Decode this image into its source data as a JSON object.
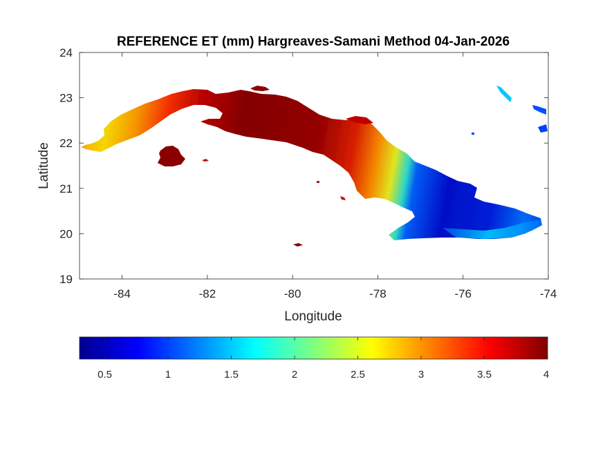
{
  "figure": {
    "title": "REFERENCE ET (mm) Hargreaves-Samani Method  04-Jan-2026",
    "xlabel": "Longitude",
    "ylabel": "Latitude"
  },
  "map": {
    "xlim": [
      -85,
      -74
    ],
    "ylim": [
      19,
      24
    ],
    "x_ticks": [
      -84,
      -82,
      -80,
      -78,
      -76,
      -74
    ],
    "y_ticks": [
      19,
      20,
      21,
      22,
      23,
      24
    ],
    "x_tick_labels": [
      "-84",
      "-82",
      "-80",
      "-78",
      "-76",
      "-74"
    ],
    "y_tick_labels": [
      "19",
      "20",
      "21",
      "22",
      "23",
      "24"
    ],
    "grid": false,
    "variable": "Reference evapotranspiration (mm)"
  },
  "colorbar": {
    "colormap": "jet",
    "min": 0.3,
    "max": 4,
    "ticks": [
      0.5,
      1,
      1.5,
      2,
      2.5,
      3,
      3.5,
      4
    ],
    "tick_labels": [
      "0.5",
      "1",
      "1.5",
      "2",
      "2.5",
      "3",
      "3.5",
      "4"
    ],
    "colors": [
      "#00008f",
      "#0000ff",
      "#00ffff",
      "#ffff00",
      "#ff0000",
      "#800000"
    ]
  }
}
